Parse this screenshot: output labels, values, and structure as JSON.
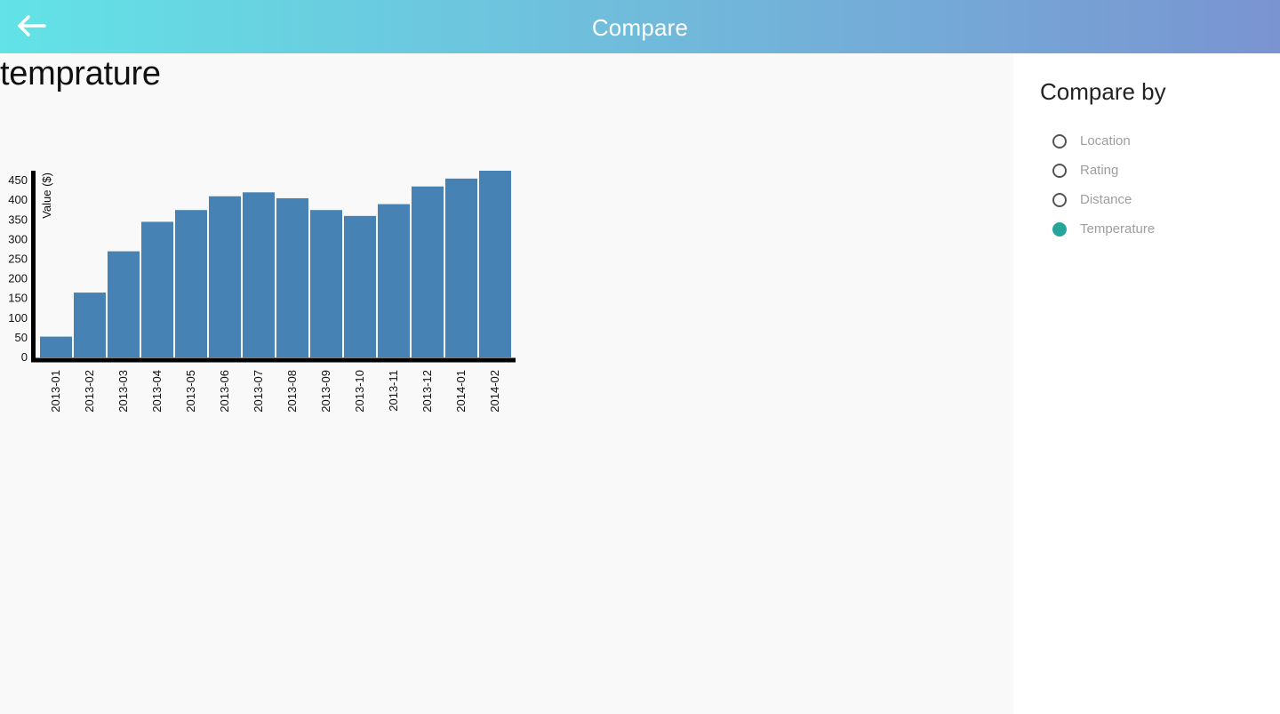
{
  "header": {
    "title": "Compare",
    "back_icon": "arrow-left-icon"
  },
  "main": {
    "chart_heading": "temprature"
  },
  "sidebar": {
    "title": "Compare by",
    "options": [
      {
        "label": "Location",
        "checked": false
      },
      {
        "label": "Rating",
        "checked": false
      },
      {
        "label": "Distance",
        "checked": false
      },
      {
        "label": "Temperature",
        "checked": true
      }
    ],
    "accent_color": "#26a69a"
  },
  "colors": {
    "bar": "#4682b4",
    "header_gradient_start": "#62e3e6",
    "header_gradient_end": "#7a94d2"
  },
  "chart_data": {
    "type": "bar",
    "title": "temprature",
    "ylabel": "Value ($)",
    "xlabel": "",
    "categories": [
      "2013-01",
      "2013-02",
      "2013-03",
      "2013-04",
      "2013-05",
      "2013-06",
      "2013-07",
      "2013-08",
      "2013-09",
      "2013-10",
      "2013-11",
      "2013-12",
      "2014-01",
      "2014-02"
    ],
    "values": [
      53,
      165,
      270,
      345,
      375,
      410,
      420,
      405,
      375,
      360,
      390,
      435,
      455,
      475
    ],
    "ylim": [
      0,
      475
    ],
    "yticks": [
      0,
      50,
      100,
      150,
      200,
      250,
      300,
      350,
      400,
      450
    ],
    "grid": false,
    "legend": "none"
  }
}
